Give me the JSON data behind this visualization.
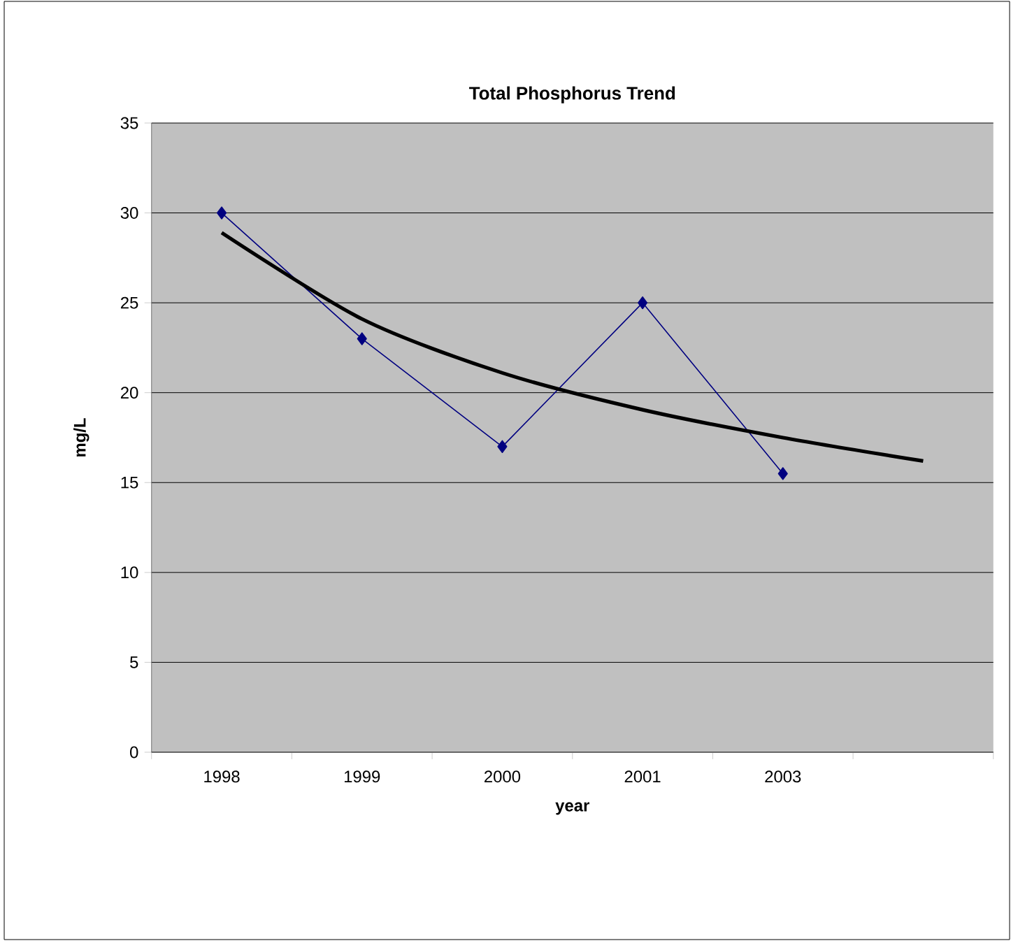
{
  "chart_data": {
    "type": "line",
    "title": "Total Phosphorus Trend",
    "xlabel": "year",
    "ylabel": "mg/L",
    "categories": [
      "1998",
      "1999",
      "2000",
      "2001",
      "2003",
      null
    ],
    "series": [
      {
        "color": "#000080",
        "marker": "diamond",
        "values": [
          30,
          23,
          17,
          25,
          15.5,
          null
        ]
      },
      {
        "color": "#000000",
        "marker": "none",
        "values": [
          28.9,
          24.1,
          21.1,
          19.05,
          17.5,
          16.2
        ]
      }
    ],
    "ylim": [
      0,
      35
    ],
    "yticks": [
      0,
      5,
      10,
      15,
      20,
      25,
      30,
      35
    ],
    "grid": "y"
  }
}
